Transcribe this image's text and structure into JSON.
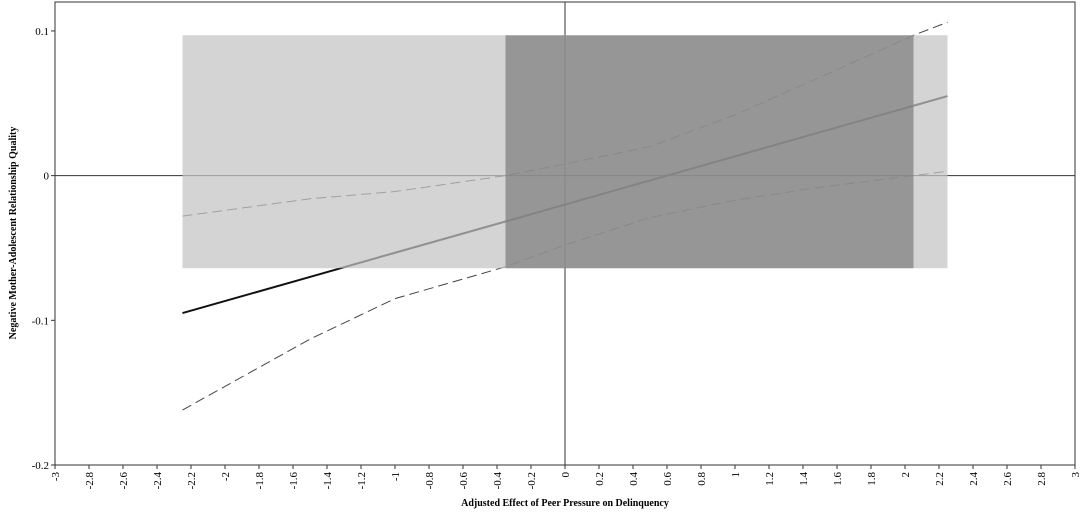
{
  "chart_data": {
    "type": "line",
    "xlabel": "Adjusted Effect of Peer Pressure on Delinquency",
    "ylabel": "Negative Mother-Adolescent Relationship Quality",
    "x": [
      -2.25,
      -1.5,
      -1,
      -0.35,
      0,
      0.5,
      1,
      1.5,
      2.05,
      2.25
    ],
    "series": [
      {
        "color": "#111111",
        "style": "solid",
        "values": [
          -0.095,
          -0.07,
          -0.0533,
          -0.0317,
          -0.02,
          -0.0033,
          0.0133,
          0.03,
          0.0483,
          0.055
        ]
      },
      {
        "color": "#444444",
        "style": "dashed",
        "values": [
          -0.028,
          -0.016,
          -0.011,
          0,
          0.008,
          0.02,
          0.042,
          0.068,
          0.097,
          0.106
        ]
      },
      {
        "color": "#444444",
        "style": "dashed",
        "values": [
          -0.162,
          -0.113,
          -0.085,
          -0.063,
          -0.048,
          -0.029,
          -0.017,
          -0.008,
          0,
          0.003
        ]
      }
    ],
    "regions": [
      {
        "xlim": [
          -2.25,
          2.25
        ],
        "ylim": [
          -0.064,
          0.097
        ],
        "color": "#c4c4c4"
      },
      {
        "xlim": [
          -0.35,
          2.05
        ],
        "ylim": [
          -0.064,
          0.097
        ],
        "color": "#7e7e7e"
      }
    ],
    "xlim": [
      -3,
      3
    ],
    "ylim": [
      -0.2,
      0.12
    ],
    "xticks": [
      -3,
      -2.8,
      -2.6,
      -2.4,
      -2.2,
      -2,
      -1.8,
      -1.6,
      -1.4,
      -1.2,
      -1,
      -0.8,
      -0.6,
      -0.4,
      -0.2,
      0,
      0.2,
      0.4,
      0.6,
      0.8,
      1,
      1.2,
      1.4,
      1.6,
      1.8,
      2,
      2.2,
      2.4,
      2.6,
      2.8,
      3
    ],
    "yticks": [
      -0.2,
      -0.1,
      0,
      0.1
    ]
  }
}
